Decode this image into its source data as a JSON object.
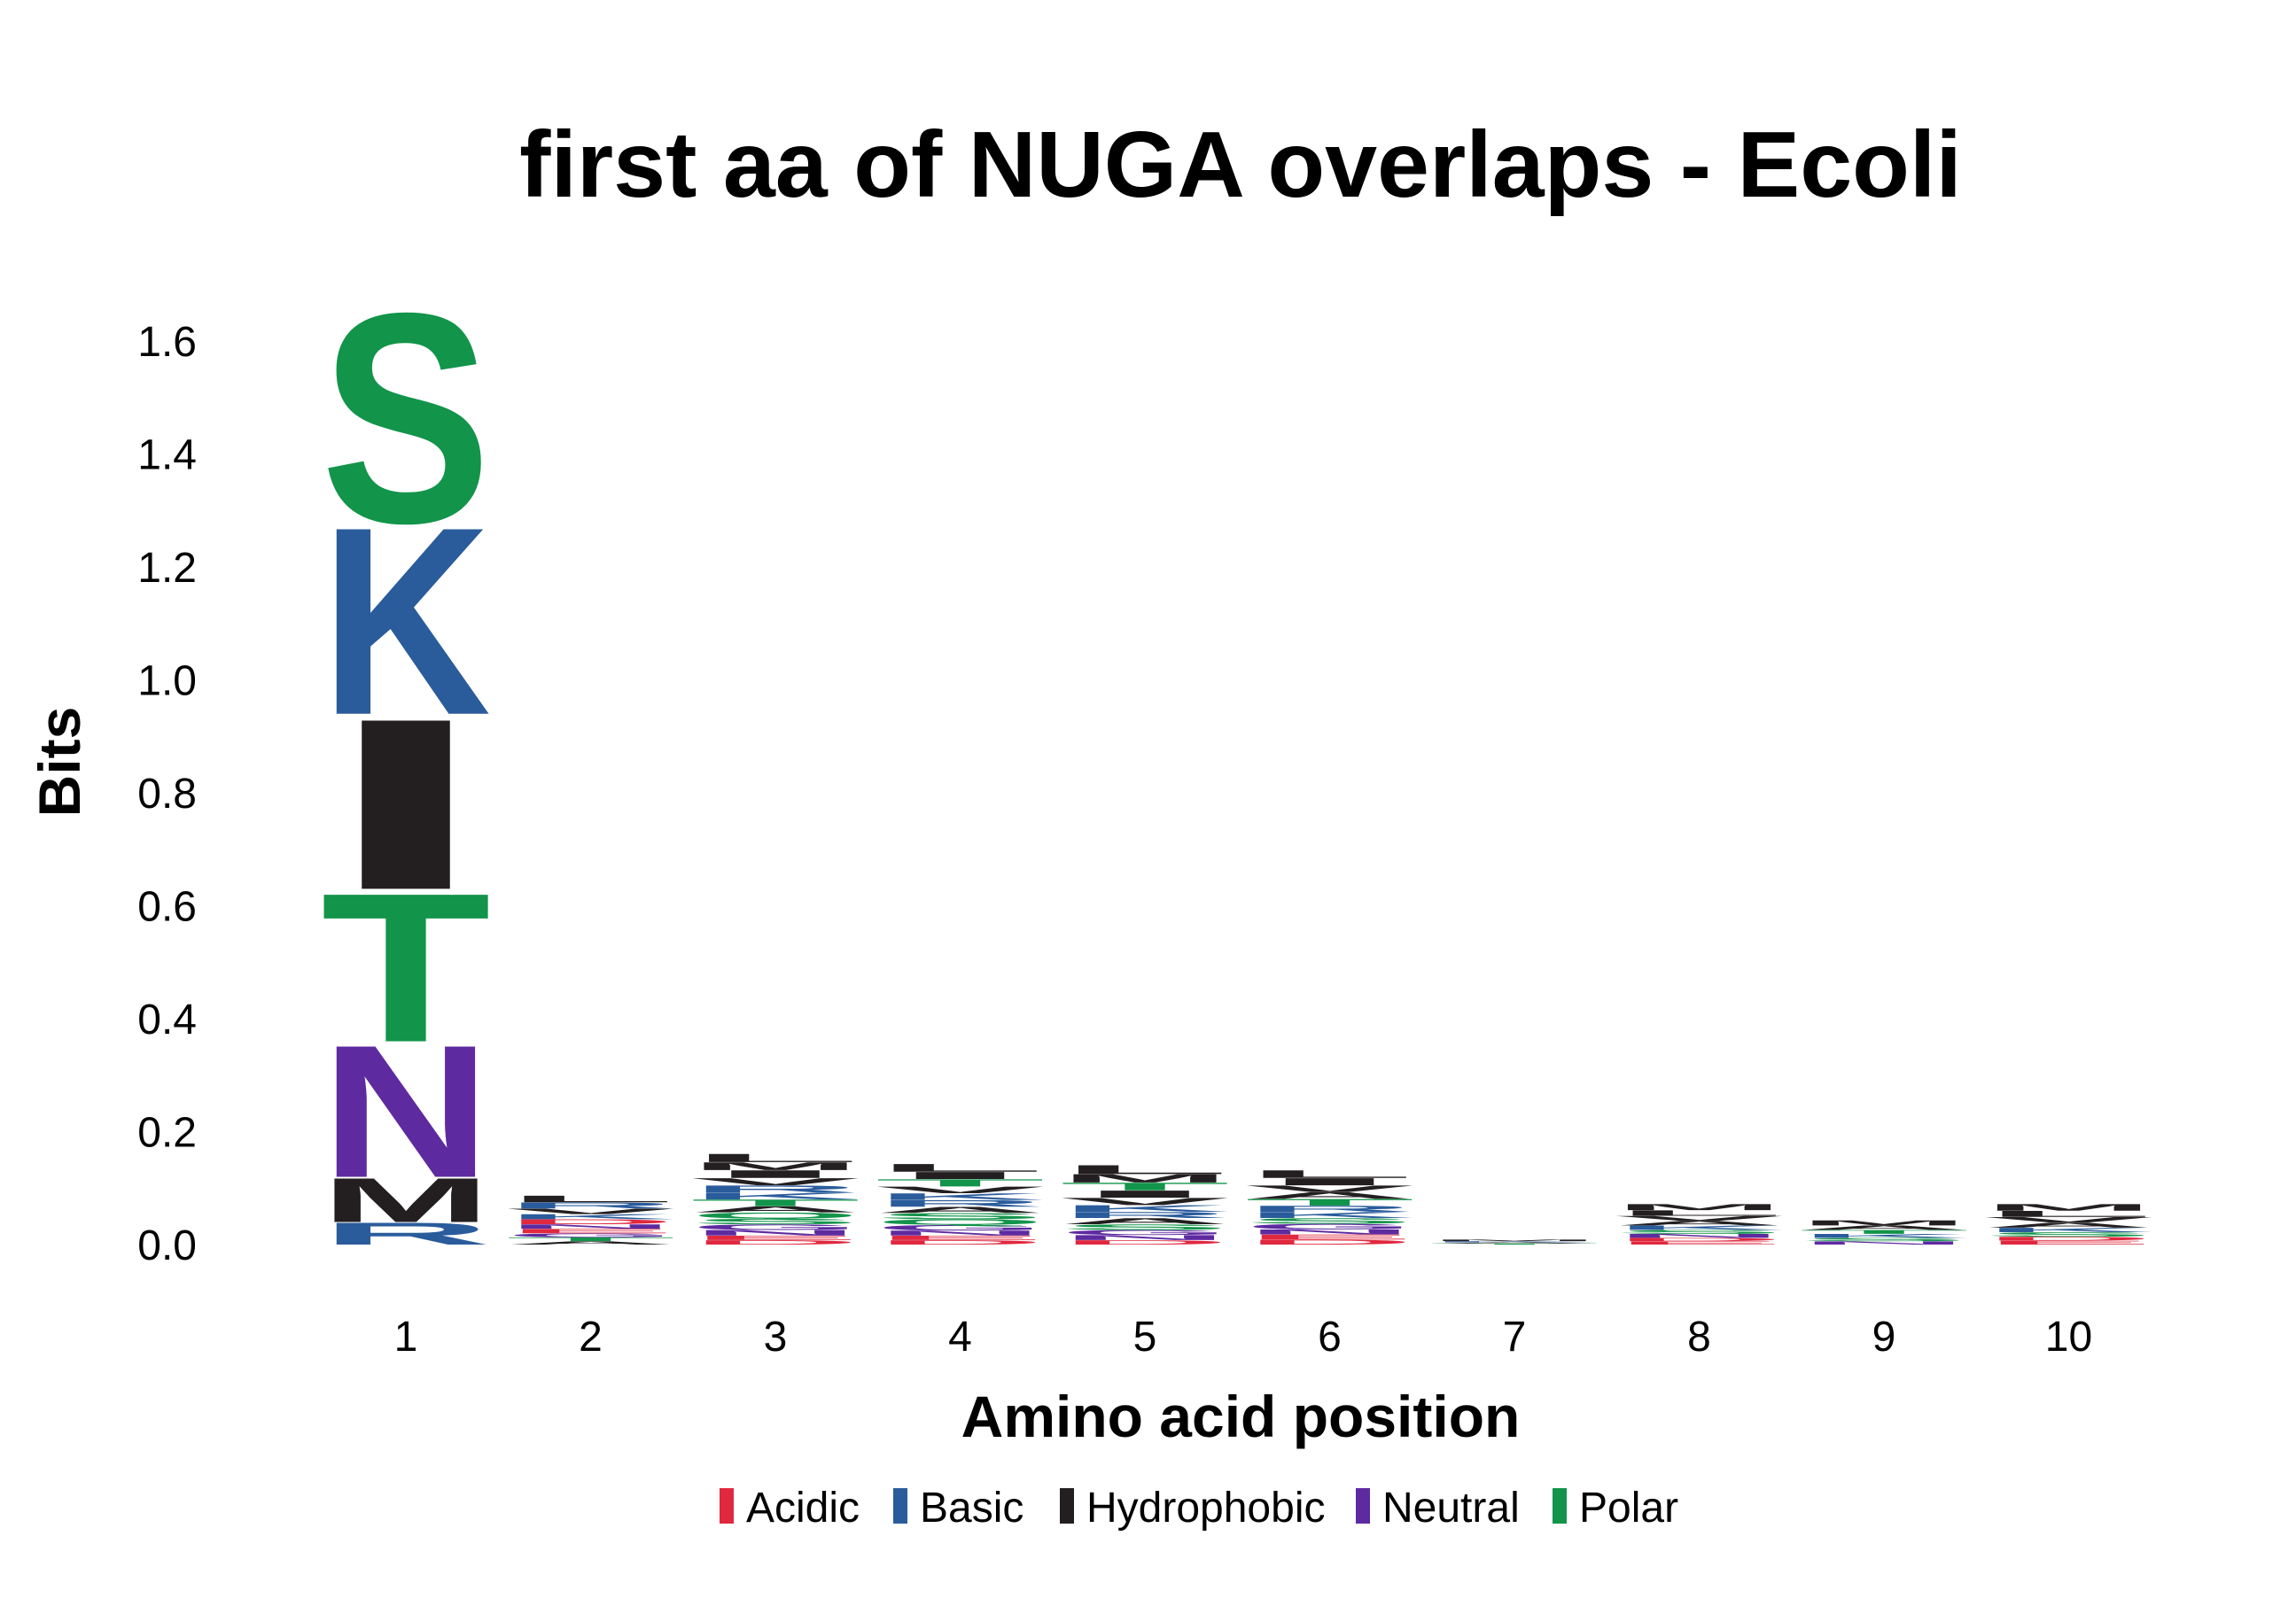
{
  "chart_data": {
    "type": "sequence-logo",
    "title": "first aa of NUGA overlaps - Ecoli",
    "xlabel": "Amino acid position",
    "ylabel": "Bits",
    "ylim": [
      0,
      1.65
    ],
    "yticks": [
      "0.0",
      "0.2",
      "0.4",
      "0.6",
      "0.8",
      "1.0",
      "1.2",
      "1.4",
      "1.6"
    ],
    "positions": [
      "1",
      "2",
      "3",
      "4",
      "5",
      "6",
      "7",
      "8",
      "9",
      "10"
    ],
    "legend": [
      {
        "label": "Acidic",
        "color": "#e0283f"
      },
      {
        "label": "Basic",
        "color": "#2a5c9c"
      },
      {
        "label": "Hydrophobic",
        "color": "#231f20"
      },
      {
        "label": "Neutral",
        "color": "#5e2aa0"
      },
      {
        "label": "Polar",
        "color": "#12944a"
      }
    ],
    "stacks": [
      {
        "position": "1",
        "letters": [
          {
            "aa": "R",
            "group": "Basic",
            "bits": 0.04
          },
          {
            "aa": "M",
            "group": "Hydrophobic",
            "bits": 0.08
          },
          {
            "aa": "N",
            "group": "Neutral",
            "bits": 0.24
          },
          {
            "aa": "T",
            "group": "Polar",
            "bits": 0.27
          },
          {
            "aa": "I",
            "group": "Hydrophobic",
            "bits": 0.31
          },
          {
            "aa": "K",
            "group": "Basic",
            "bits": 0.34
          },
          {
            "aa": "S",
            "group": "Polar",
            "bits": 0.38
          }
        ]
      },
      {
        "position": "2",
        "letters": [
          {
            "aa": "A",
            "group": "Hydrophobic",
            "bits": 0.006
          },
          {
            "aa": "T",
            "group": "Polar",
            "bits": 0.007
          },
          {
            "aa": "G",
            "group": "Neutral",
            "bits": 0.007
          },
          {
            "aa": "E",
            "group": "Acidic",
            "bits": 0.008
          },
          {
            "aa": "N",
            "group": "Neutral",
            "bits": 0.008
          },
          {
            "aa": "D",
            "group": "Acidic",
            "bits": 0.009
          },
          {
            "aa": "K",
            "group": "Basic",
            "bits": 0.009
          },
          {
            "aa": "V",
            "group": "Hydrophobic",
            "bits": 0.01
          },
          {
            "aa": "R",
            "group": "Basic",
            "bits": 0.011
          },
          {
            "aa": "L",
            "group": "Hydrophobic",
            "bits": 0.012
          }
        ]
      },
      {
        "position": "3",
        "letters": [
          {
            "aa": "D",
            "group": "Acidic",
            "bits": 0.008
          },
          {
            "aa": "E",
            "group": "Acidic",
            "bits": 0.008
          },
          {
            "aa": "N",
            "group": "Neutral",
            "bits": 0.01
          },
          {
            "aa": "G",
            "group": "Neutral",
            "bits": 0.01
          },
          {
            "aa": "S",
            "group": "Polar",
            "bits": 0.01
          },
          {
            "aa": "Q",
            "group": "Polar",
            "bits": 0.011
          },
          {
            "aa": "A",
            "group": "Hydrophobic",
            "bits": 0.011
          },
          {
            "aa": "T",
            "group": "Polar",
            "bits": 0.012
          },
          {
            "aa": "K",
            "group": "Basic",
            "bits": 0.012
          },
          {
            "aa": "R",
            "group": "Basic",
            "bits": 0.013
          },
          {
            "aa": "V",
            "group": "Hydrophobic",
            "bits": 0.013
          },
          {
            "aa": "I",
            "group": "Hydrophobic",
            "bits": 0.014
          },
          {
            "aa": "M",
            "group": "Hydrophobic",
            "bits": 0.014
          },
          {
            "aa": "L",
            "group": "Hydrophobic",
            "bits": 0.015
          }
        ]
      },
      {
        "position": "4",
        "letters": [
          {
            "aa": "D",
            "group": "Acidic",
            "bits": 0.008
          },
          {
            "aa": "E",
            "group": "Acidic",
            "bits": 0.008
          },
          {
            "aa": "N",
            "group": "Neutral",
            "bits": 0.009
          },
          {
            "aa": "G",
            "group": "Neutral",
            "bits": 0.01
          },
          {
            "aa": "Q",
            "group": "Polar",
            "bits": 0.01
          },
          {
            "aa": "S",
            "group": "Polar",
            "bits": 0.011
          },
          {
            "aa": "A",
            "group": "Hydrophobic",
            "bits": 0.011
          },
          {
            "aa": "R",
            "group": "Basic",
            "bits": 0.012
          },
          {
            "aa": "K",
            "group": "Basic",
            "bits": 0.012
          },
          {
            "aa": "V",
            "group": "Hydrophobic",
            "bits": 0.012
          },
          {
            "aa": "T",
            "group": "Polar",
            "bits": 0.013
          },
          {
            "aa": "I",
            "group": "Hydrophobic",
            "bits": 0.013
          },
          {
            "aa": "L",
            "group": "Hydrophobic",
            "bits": 0.014
          }
        ]
      },
      {
        "position": "5",
        "letters": [
          {
            "aa": "D",
            "group": "Acidic",
            "bits": 0.008
          },
          {
            "aa": "N",
            "group": "Neutral",
            "bits": 0.009
          },
          {
            "aa": "G",
            "group": "Neutral",
            "bits": 0.009
          },
          {
            "aa": "S",
            "group": "Polar",
            "bits": 0.01
          },
          {
            "aa": "A",
            "group": "Hydrophobic",
            "bits": 0.011
          },
          {
            "aa": "R",
            "group": "Basic",
            "bits": 0.011
          },
          {
            "aa": "K",
            "group": "Basic",
            "bits": 0.012
          },
          {
            "aa": "V",
            "group": "Hydrophobic",
            "bits": 0.013
          },
          {
            "aa": "I",
            "group": "Hydrophobic",
            "bits": 0.013
          },
          {
            "aa": "T",
            "group": "Polar",
            "bits": 0.014
          },
          {
            "aa": "M",
            "group": "Hydrophobic",
            "bits": 0.015
          },
          {
            "aa": "L",
            "group": "Hydrophobic",
            "bits": 0.016
          }
        ]
      },
      {
        "position": "6",
        "letters": [
          {
            "aa": "D",
            "group": "Acidic",
            "bits": 0.009
          },
          {
            "aa": "E",
            "group": "Acidic",
            "bits": 0.009
          },
          {
            "aa": "N",
            "group": "Neutral",
            "bits": 0.009
          },
          {
            "aa": "G",
            "group": "Neutral",
            "bits": 0.01
          },
          {
            "aa": "S",
            "group": "Polar",
            "bits": 0.01
          },
          {
            "aa": "K",
            "group": "Basic",
            "bits": 0.011
          },
          {
            "aa": "R",
            "group": "Basic",
            "bits": 0.011
          },
          {
            "aa": "T",
            "group": "Polar",
            "bits": 0.012
          },
          {
            "aa": "A",
            "group": "Hydrophobic",
            "bits": 0.012
          },
          {
            "aa": "V",
            "group": "Hydrophobic",
            "bits": 0.012
          },
          {
            "aa": "I",
            "group": "Hydrophobic",
            "bits": 0.013
          },
          {
            "aa": "L",
            "group": "Hydrophobic",
            "bits": 0.014
          }
        ]
      },
      {
        "position": "7",
        "letters": [
          {
            "aa": "T",
            "group": "Polar",
            "bits": 0.002
          },
          {
            "aa": "A",
            "group": "Hydrophobic",
            "bits": 0.002
          },
          {
            "aa": "K",
            "group": "Basic",
            "bits": 0.002
          },
          {
            "aa": "M",
            "group": "Hydrophobic",
            "bits": 0.003
          }
        ]
      },
      {
        "position": "8",
        "letters": [
          {
            "aa": "E",
            "group": "Acidic",
            "bits": 0.006
          },
          {
            "aa": "D",
            "group": "Acidic",
            "bits": 0.006
          },
          {
            "aa": "N",
            "group": "Neutral",
            "bits": 0.007
          },
          {
            "aa": "S",
            "group": "Polar",
            "bits": 0.007
          },
          {
            "aa": "K",
            "group": "Basic",
            "bits": 0.008
          },
          {
            "aa": "A",
            "group": "Hydrophobic",
            "bits": 0.008
          },
          {
            "aa": "V",
            "group": "Hydrophobic",
            "bits": 0.009
          },
          {
            "aa": "L",
            "group": "Hydrophobic",
            "bits": 0.01
          },
          {
            "aa": "M",
            "group": "Hydrophobic",
            "bits": 0.011
          }
        ]
      },
      {
        "position": "9",
        "letters": [
          {
            "aa": "N",
            "group": "Neutral",
            "bits": 0.006
          },
          {
            "aa": "S",
            "group": "Polar",
            "bits": 0.006
          },
          {
            "aa": "K",
            "group": "Basic",
            "bits": 0.007
          },
          {
            "aa": "T",
            "group": "Polar",
            "bits": 0.007
          },
          {
            "aa": "A",
            "group": "Hydrophobic",
            "bits": 0.008
          },
          {
            "aa": "M",
            "group": "Hydrophobic",
            "bits": 0.009
          }
        ]
      },
      {
        "position": "10",
        "letters": [
          {
            "aa": "E",
            "group": "Acidic",
            "bits": 0.007
          },
          {
            "aa": "D",
            "group": "Acidic",
            "bits": 0.007
          },
          {
            "aa": "S",
            "group": "Polar",
            "bits": 0.008
          },
          {
            "aa": "K",
            "group": "Basic",
            "bits": 0.008
          },
          {
            "aa": "A",
            "group": "Hydrophobic",
            "bits": 0.009
          },
          {
            "aa": "V",
            "group": "Hydrophobic",
            "bits": 0.01
          },
          {
            "aa": "L",
            "group": "Hydrophobic",
            "bits": 0.011
          },
          {
            "aa": "M",
            "group": "Hydrophobic",
            "bits": 0.012
          }
        ]
      }
    ]
  }
}
